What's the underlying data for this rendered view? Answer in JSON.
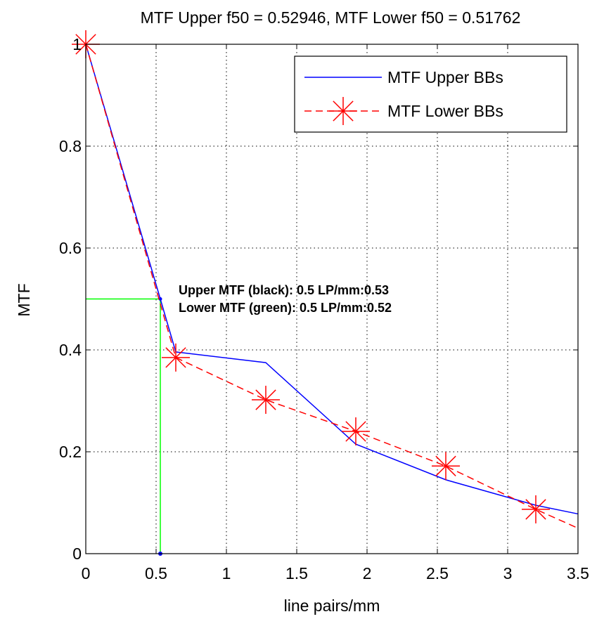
{
  "chart_data": {
    "type": "line",
    "title": "MTF Upper f50 = 0.52946, MTF Lower f50 = 0.51762",
    "xlabel": "line pairs/mm",
    "ylabel": "MTF",
    "xlim": [
      0,
      3.5
    ],
    "ylim": [
      0,
      1
    ],
    "xticks": [
      0,
      0.5,
      1,
      1.5,
      2,
      2.5,
      3,
      3.5
    ],
    "xtick_labels": [
      "0",
      "0.5",
      "1",
      "1.5",
      "2",
      "2.5",
      "3",
      "3.5"
    ],
    "yticks": [
      0,
      0.2,
      0.4,
      0.6,
      0.8,
      1
    ],
    "ytick_labels": [
      "0",
      "0.2",
      "0.4",
      "0.6",
      "0.8",
      "1"
    ],
    "grid": true,
    "legend_position": "top-right",
    "series": [
      {
        "name": "MTF Upper BBs",
        "color": "#0000ff",
        "style": "solid",
        "marker": "none",
        "x": [
          0,
          0.53,
          0.64,
          1.28,
          1.92,
          2.56,
          3.2,
          3.5
        ],
        "y": [
          1.0,
          0.5,
          0.396,
          0.375,
          0.215,
          0.145,
          0.095,
          0.078
        ]
      },
      {
        "name": "MTF Lower BBs",
        "color": "#ff0000",
        "style": "dashed",
        "marker": "star",
        "x": [
          0,
          0.52,
          0.64,
          1.28,
          1.92,
          2.56,
          3.2,
          3.5
        ],
        "y": [
          1.0,
          0.5,
          0.385,
          0.302,
          0.24,
          0.172,
          0.087,
          0.05
        ]
      }
    ],
    "reference_lines": {
      "color": "#00ff00",
      "f50_x": 0.53,
      "level_y": 0.5
    },
    "annotations": [
      "Upper MTF (black): 0.5 LP/mm:0.53",
      "Lower MTF (green): 0.5 LP/mm:0.52"
    ]
  }
}
